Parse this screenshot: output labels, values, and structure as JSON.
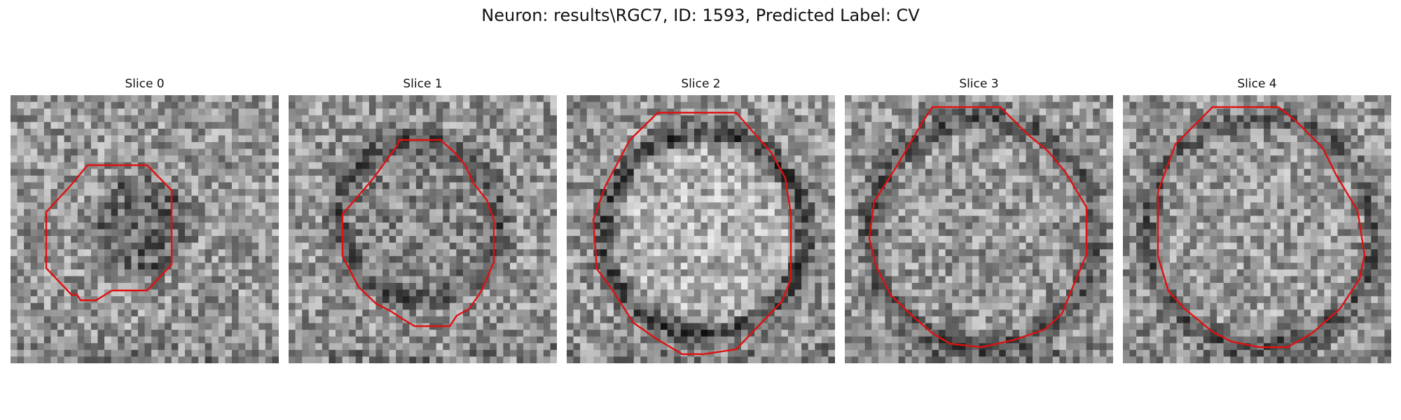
{
  "figure": {
    "title": "Neuron: results\\RGC7, ID: 1593, Predicted Label: CV"
  },
  "panels": [
    {
      "title": "Slice 0"
    },
    {
      "title": "Slice 1"
    },
    {
      "title": "Slice 2"
    },
    {
      "title": "Slice 3"
    },
    {
      "title": "Slice 4"
    }
  ],
  "colors": {
    "contour": "#e01010",
    "background": "#ffffff"
  }
}
